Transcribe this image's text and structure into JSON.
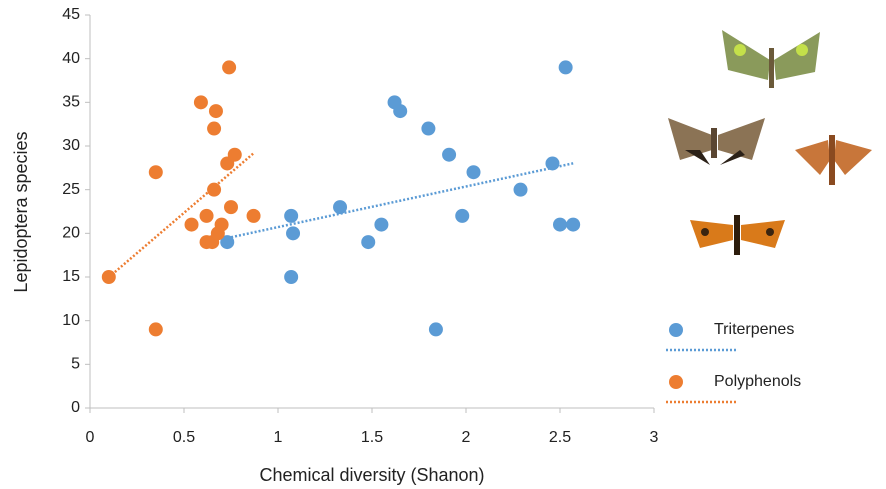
{
  "chart_data": {
    "type": "scatter",
    "x_label": "Chemical diversity (Shanon)",
    "y_label": "Lepidoptera species",
    "xlim": [
      0,
      3
    ],
    "xticks": [
      0,
      0.5,
      1,
      1.5,
      2,
      2.5,
      3
    ],
    "ylim": [
      0,
      45
    ],
    "yticks": [
      0,
      5,
      10,
      15,
      20,
      25,
      30,
      35,
      40,
      45
    ],
    "grid": false,
    "trendline": "linear",
    "legend": "right",
    "series": [
      {
        "name": "Triterpenes",
        "color": "#5b9bd5",
        "x": [
          0.73,
          1.07,
          1.08,
          1.07,
          1.33,
          1.48,
          1.55,
          1.62,
          1.65,
          1.8,
          1.91,
          1.84,
          1.98,
          2.04,
          2.29,
          2.46,
          2.5,
          2.53,
          2.57
        ],
        "values": [
          19,
          22,
          20,
          15,
          23,
          19,
          21,
          35,
          34,
          32,
          29,
          9,
          22,
          27,
          25,
          28,
          21,
          39,
          21
        ]
      },
      {
        "name": "Polyphenols",
        "color": "#ed7d31",
        "x": [
          0.1,
          0.35,
          0.35,
          0.54,
          0.59,
          0.62,
          0.62,
          0.65,
          0.66,
          0.66,
          0.67,
          0.68,
          0.7,
          0.73,
          0.74,
          0.75,
          0.77,
          0.87
        ],
        "values": [
          15,
          27,
          9,
          21,
          35,
          22,
          19,
          19,
          32,
          25,
          34,
          20,
          21,
          28,
          39,
          23,
          29,
          22
        ]
      }
    ]
  }
}
